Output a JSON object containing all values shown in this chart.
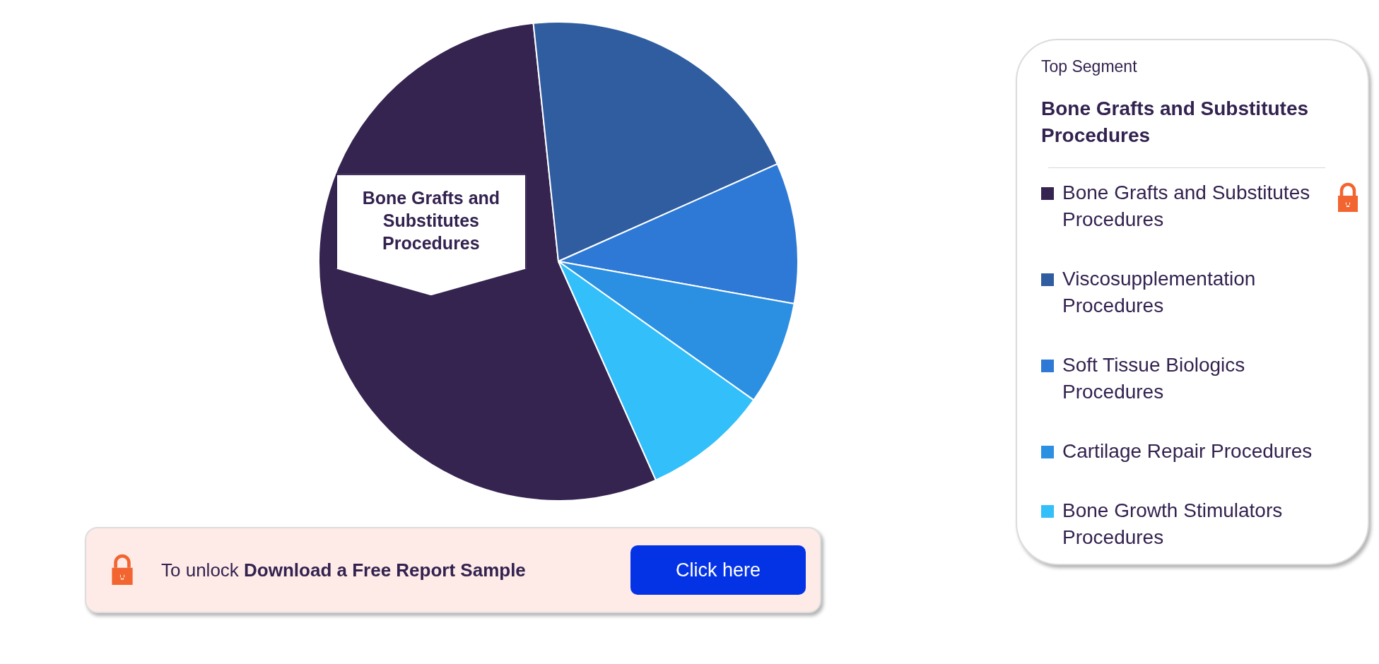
{
  "chart_data": {
    "type": "pie",
    "categories": [
      "Bone Grafts and Substitutes Procedures",
      "Viscosupplementation Procedures",
      "Soft Tissue Biologics Procedures",
      "Cartilage Repair Procedures",
      "Bone Growth Stimulators Procedures"
    ],
    "values": [
      55,
      20,
      9.5,
      7,
      8.5
    ],
    "colors": [
      "#352350",
      "#2f5da0",
      "#2d79d5",
      "#2b90e2",
      "#33bff9"
    ],
    "legend": "right",
    "legend_title": "Top Segment",
    "annotations": [
      "To unlock",
      "Download a Free Report Sample",
      "Click here"
    ]
  }
}
